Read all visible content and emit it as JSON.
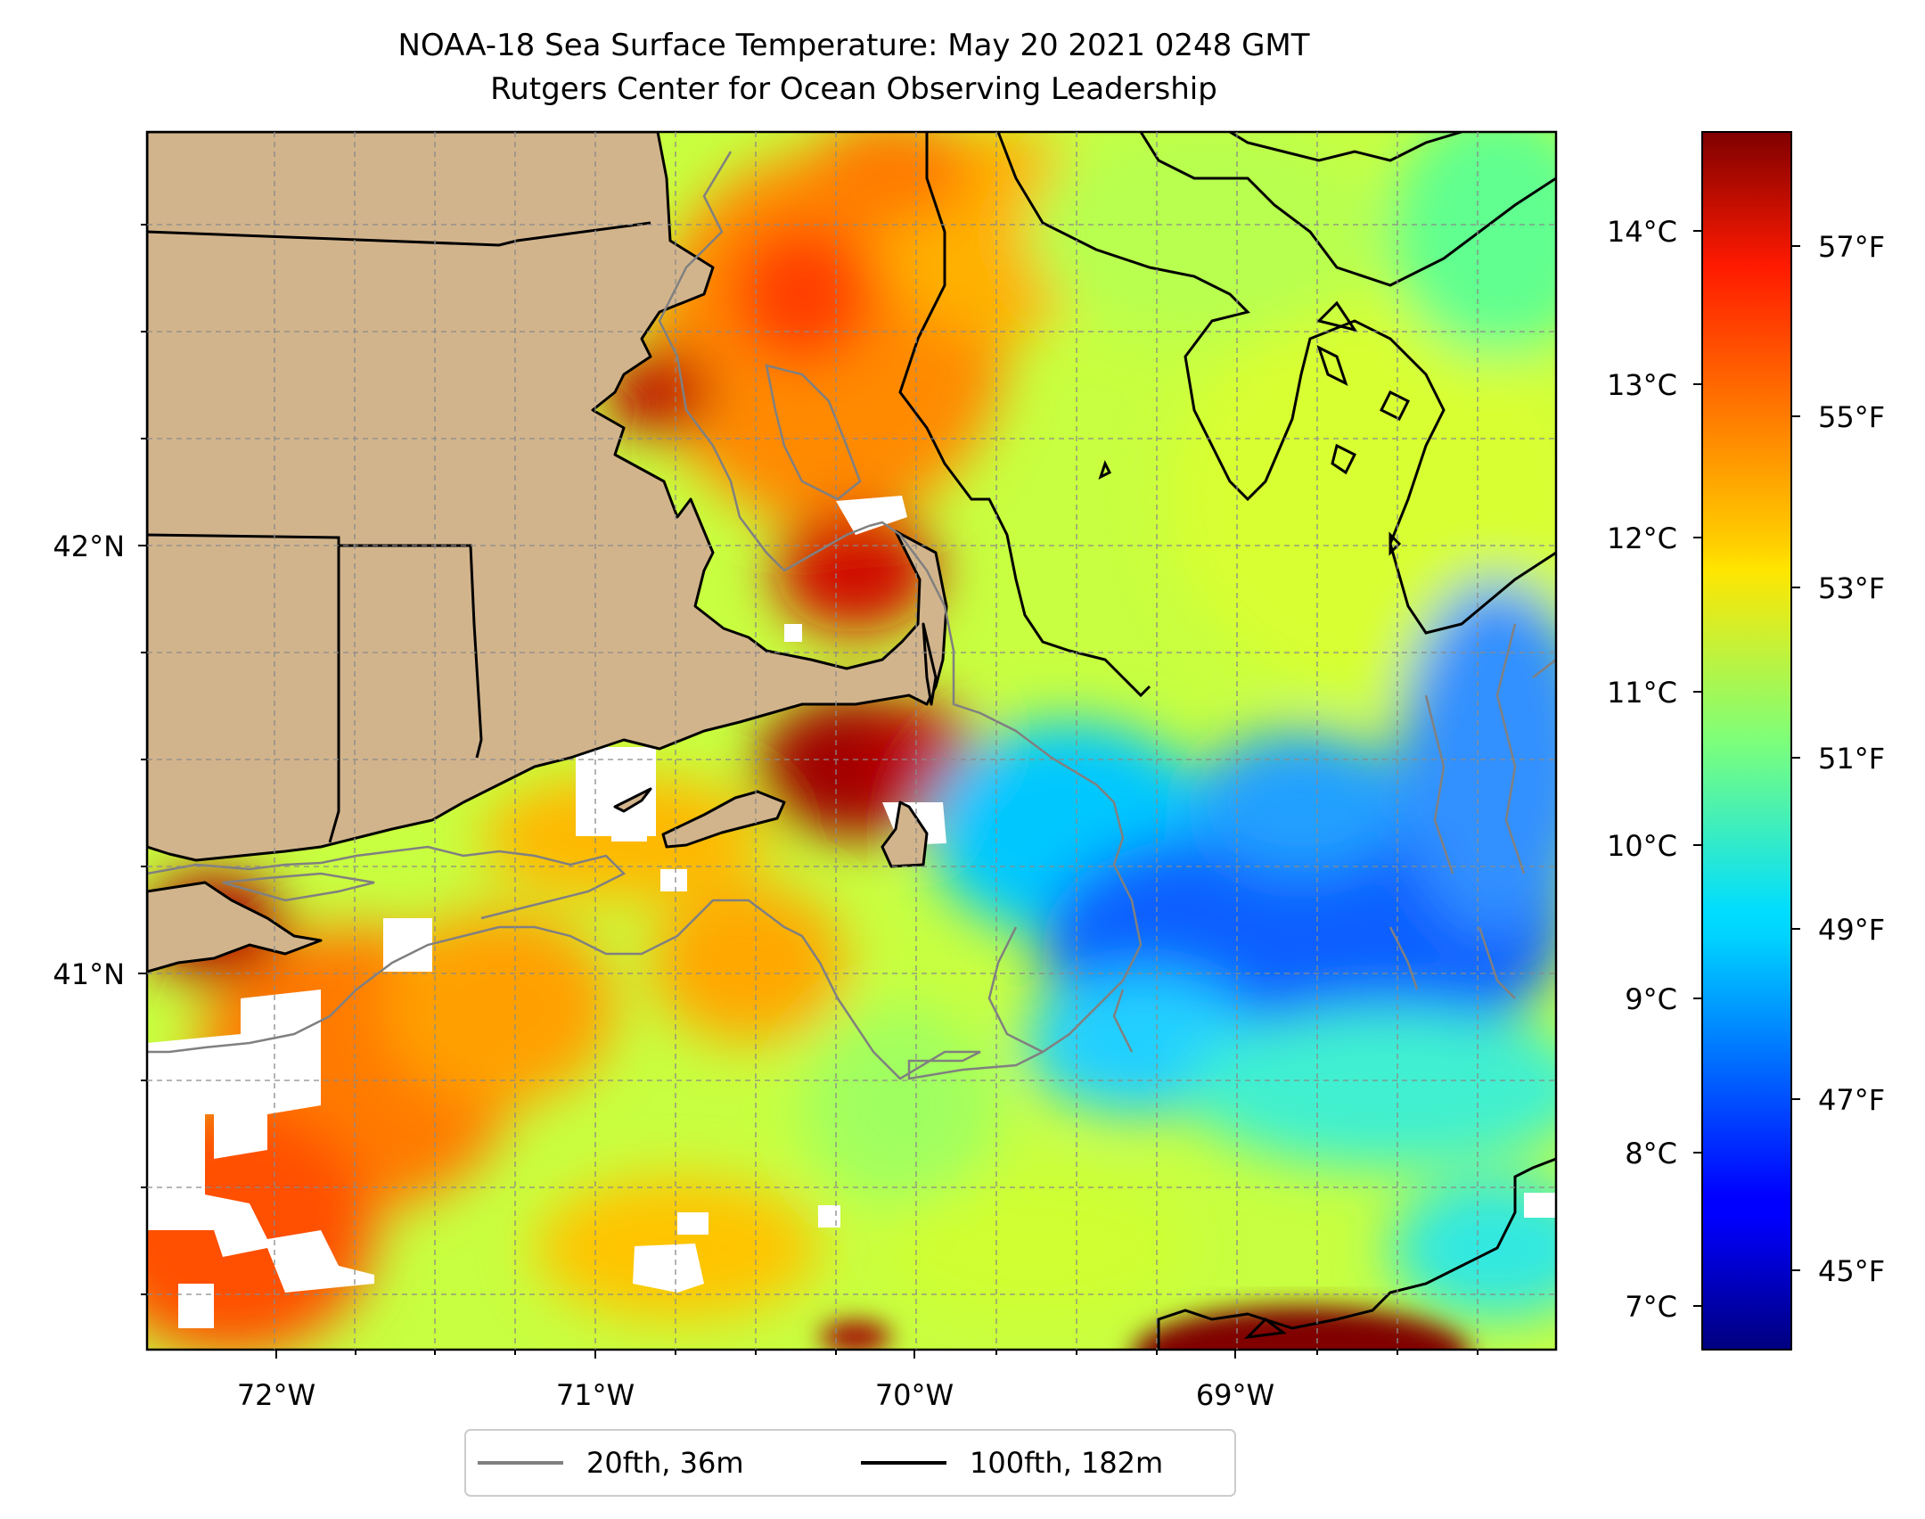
{
  "title": {
    "line1": "NOAA-18 Sea Surface Temperature: May 20 2021 0248 GMT",
    "line2": "Rutgers Center for Ocean Observing Leadership"
  },
  "map": {
    "lon_labels": [
      "72°W",
      "71°W",
      "70°W",
      "69°W"
    ],
    "lat_labels": [
      "42°N",
      "41°N"
    ],
    "land_color": "#d2b48c",
    "gridlines": true
  },
  "colorbar": {
    "colormap": "jet",
    "celsius_labels": [
      "14°C",
      "13°C",
      "12°C",
      "11°C",
      "10°C",
      "9°C",
      "8°C",
      "7°C"
    ],
    "fahrenheit_labels": [
      "57°F",
      "55°F",
      "53°F",
      "51°F",
      "49°F",
      "47°F",
      "45°F"
    ]
  },
  "legend": {
    "placement": "bottom-center",
    "items": [
      {
        "label": "20fth, 36m",
        "color": "#808080"
      },
      {
        "label": "100fth, 182m",
        "color": "#000000"
      }
    ]
  }
}
